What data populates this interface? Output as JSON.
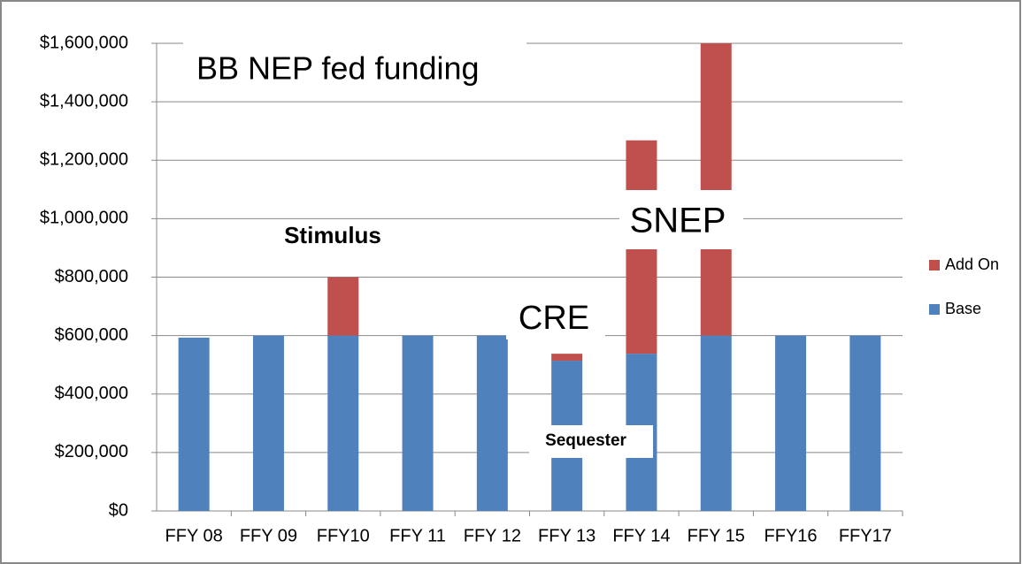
{
  "chart_data": {
    "type": "stacked_bar",
    "title": "BB NEP fed funding",
    "annotations": [
      "Stimulus",
      "CRE",
      "SNEP",
      "Sequester"
    ],
    "categories": [
      "FFY 08",
      "FFY 09",
      "FFY10",
      "FFY 11",
      "FFY 12",
      "FFY 13",
      "FFY 14",
      "FFY 15",
      "FFY16",
      "FFY17"
    ],
    "series": [
      {
        "name": "Base",
        "color": "#4f81bd",
        "values": [
          593000,
          600000,
          600000,
          600000,
          600000,
          514000,
          538000,
          600000,
          600000,
          600000
        ]
      },
      {
        "name": "Add On",
        "color": "#c0504d",
        "values": [
          0,
          0,
          200000,
          0,
          0,
          24000,
          730000,
          1000000,
          0,
          0
        ]
      }
    ],
    "ylim": [
      0,
      1600000
    ],
    "yticks": [
      {
        "value": 0,
        "label": "$0"
      },
      {
        "value": 200000,
        "label": "$200,000"
      },
      {
        "value": 400000,
        "label": "$400,000"
      },
      {
        "value": 600000,
        "label": "$600,000"
      },
      {
        "value": 800000,
        "label": "$800,000"
      },
      {
        "value": 1000000,
        "label": "$1,000,000"
      },
      {
        "value": 1200000,
        "label": "$1,200,000"
      },
      {
        "value": 1400000,
        "label": "$1,400,000"
      },
      {
        "value": 1600000,
        "label": "$1,600,000"
      }
    ],
    "grid": true,
    "legend": "right"
  }
}
